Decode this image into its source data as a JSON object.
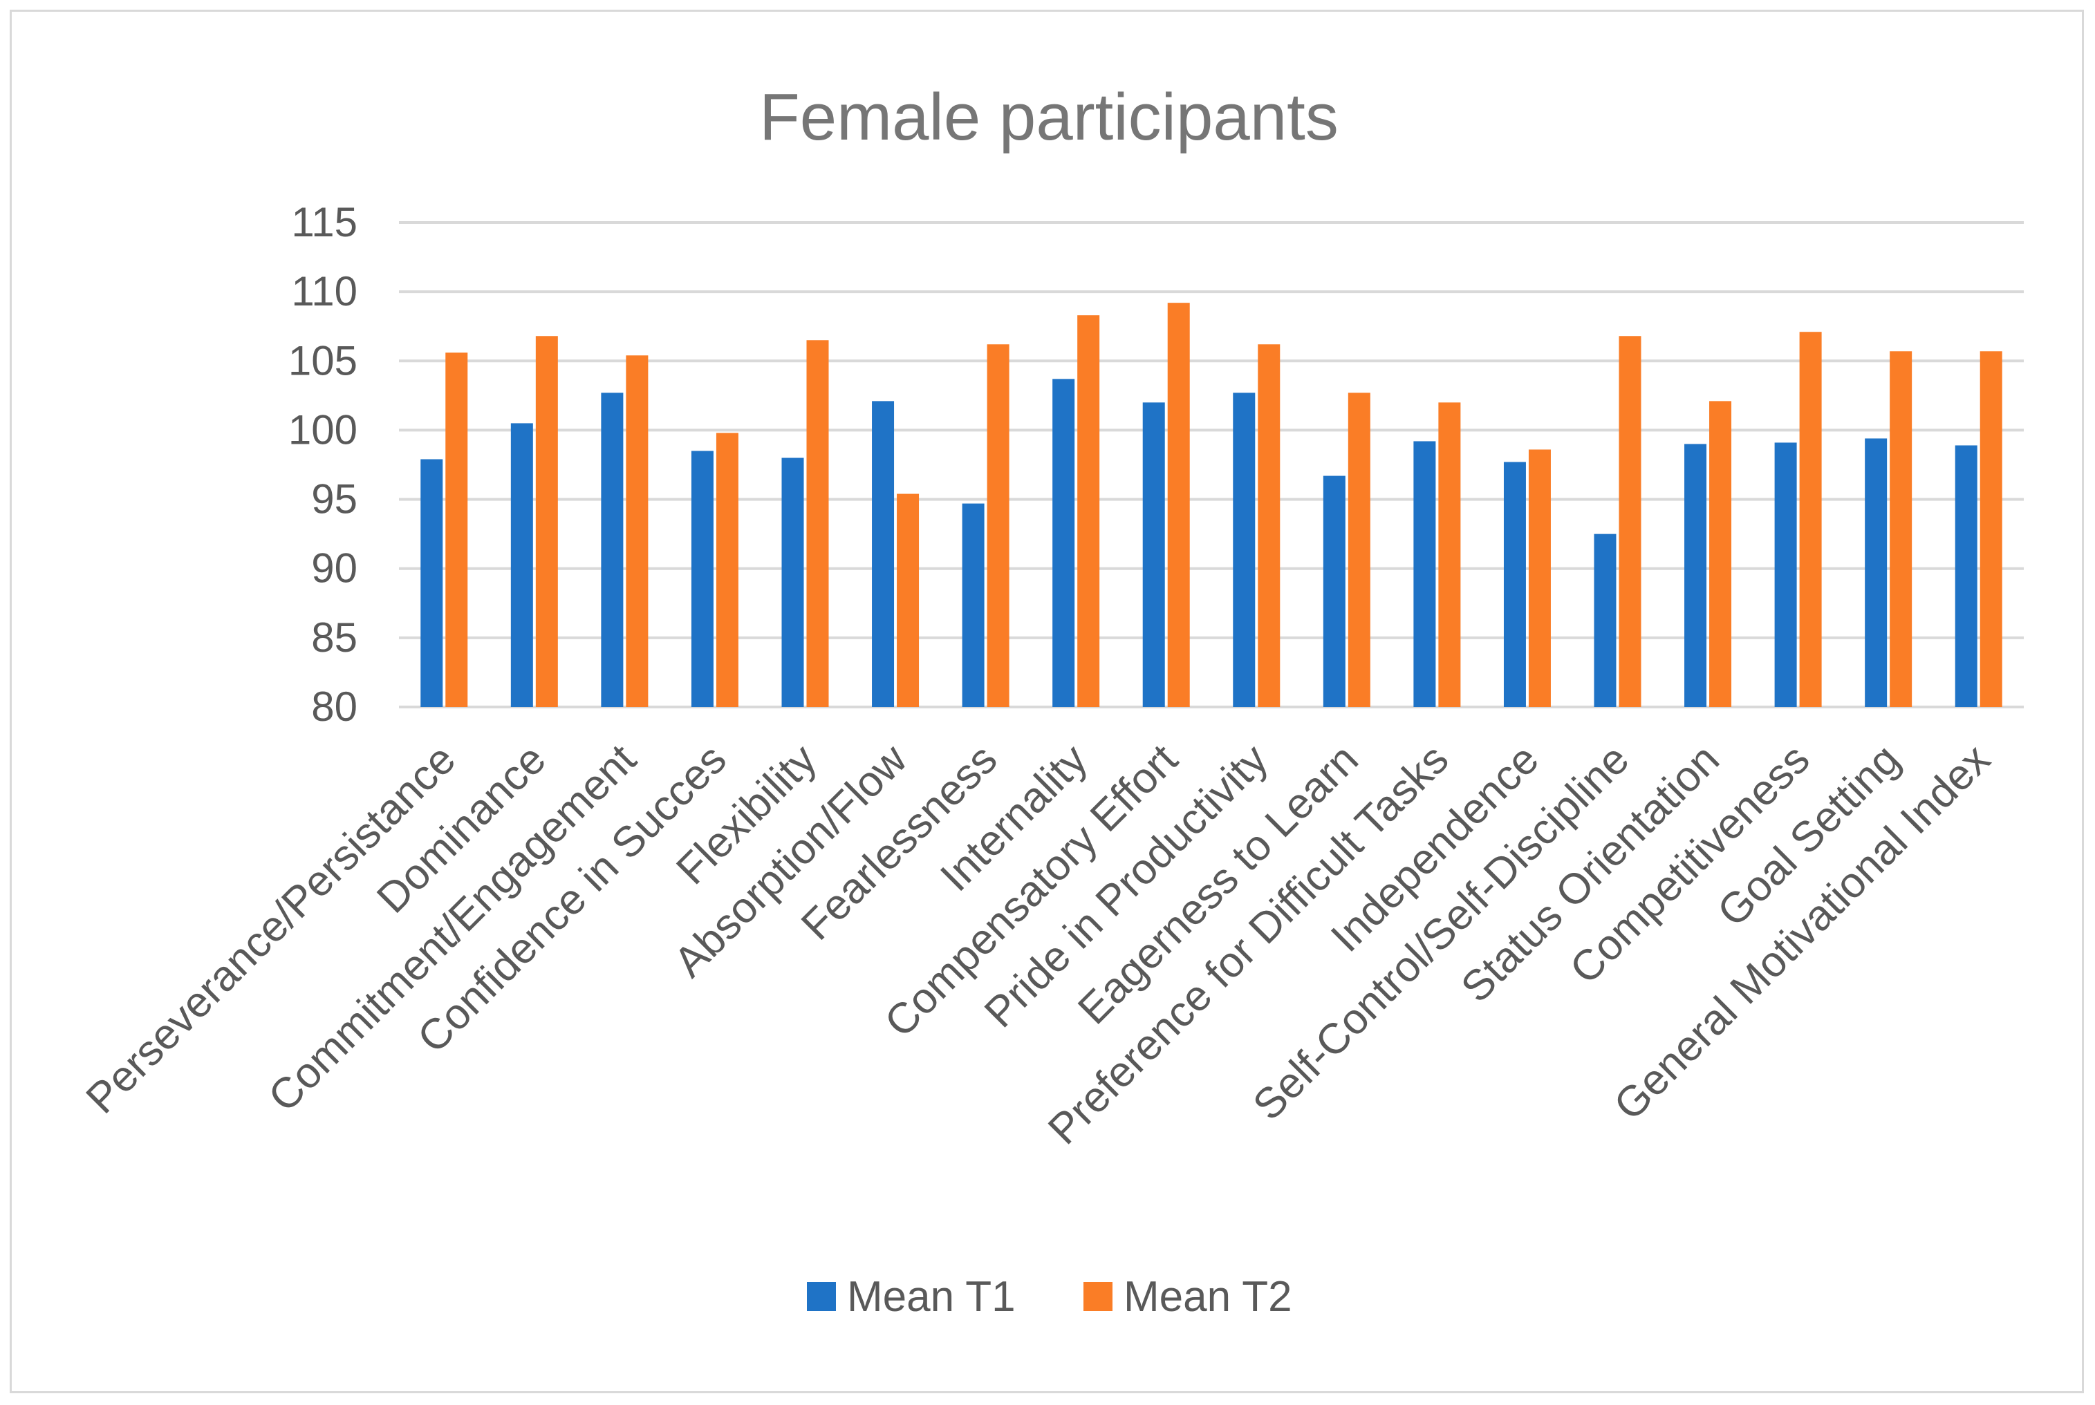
{
  "chart_data": {
    "type": "bar",
    "title": "Female participants",
    "xlabel": "",
    "ylabel": "",
    "ylim": [
      80,
      115
    ],
    "yticks": [
      "80",
      "85",
      "90",
      "95",
      "100",
      "105",
      "110",
      "115"
    ],
    "grid": true,
    "legend_position": "bottom",
    "categories": [
      "Perseverance/Persistance",
      "Dominance",
      "Commitment/Engagement",
      "Confidence in Succes",
      "Flexibility",
      "Absorption/Flow",
      "Fearlessness",
      "Internality",
      "Compensatory Effort",
      "Pride in Productivity",
      "Eagerness to Learn",
      "Preference for Difficult Tasks",
      "Independence",
      "Self-Control/Self-Discipline",
      "Status Orientation",
      "Competitiveness",
      "Goal Setting",
      "General Motivational Index"
    ],
    "series": [
      {
        "name": "Mean T1",
        "color": "#1f73c6",
        "values": [
          97.9,
          100.5,
          102.7,
          98.5,
          98.0,
          102.1,
          94.7,
          103.7,
          102.0,
          102.7,
          96.7,
          99.2,
          97.7,
          92.5,
          99.0,
          99.1,
          99.4,
          98.9
        ]
      },
      {
        "name": "Mean T2",
        "color": "#fa7d26",
        "values": [
          105.6,
          106.8,
          105.4,
          99.8,
          106.5,
          95.4,
          106.2,
          108.3,
          109.2,
          106.2,
          102.7,
          102.0,
          98.6,
          106.8,
          102.1,
          107.1,
          105.7,
          105.7
        ]
      }
    ]
  }
}
